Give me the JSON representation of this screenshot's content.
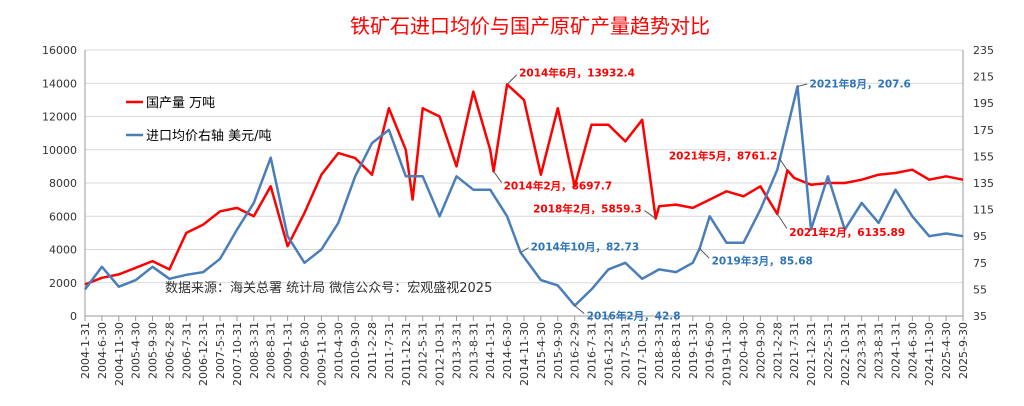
{
  "chart_data": {
    "type": "line",
    "title": "铁矿石进口均价与国产原矿产量趋势对比",
    "source_note": "数据来源：海关总署 统计局  微信公众号：宏观盛视2025",
    "x_tick_labels": [
      "2004-1-31",
      "2004-6-30",
      "2004-11-30",
      "2005-4-30",
      "2005-9-30",
      "2006-2-28",
      "2006-7-31",
      "2006-12-31",
      "2007-5-31",
      "2007-10-31",
      "2008-3-31",
      "2008-8-31",
      "2009-1-31",
      "2009-6-30",
      "2009-11-30",
      "2010-4-30",
      "2010-9-30",
      "2011-2-28",
      "2011-7-31",
      "2011-12-31",
      "2012-5-31",
      "2012-10-31",
      "2013-3-31",
      "2013-8-31",
      "2014-1-31",
      "2014-6-30",
      "2014-11-30",
      "2015-4-30",
      "2015-9-30",
      "2016-2-29",
      "2016-7-31",
      "2016-12-31",
      "2017-5-31",
      "2017-10-31",
      "2018-3-31",
      "2018-8-31",
      "2019-1-31",
      "2019-6-30",
      "2019-11-30",
      "2020-4-30",
      "2020-9-30",
      "2021-2-28",
      "2021-7-31",
      "2021-12-31",
      "2022-5-31",
      "2022-10-31",
      "2023-3-31",
      "2023-8-31",
      "2024-1-31",
      "2024-6-30",
      "2024-11-30",
      "2025-4-30",
      "2025-9-30"
    ],
    "y_left": {
      "min": 0,
      "max": 16000,
      "ticks": [
        0,
        2000,
        4000,
        6000,
        8000,
        10000,
        12000,
        14000,
        16000
      ]
    },
    "y_right": {
      "min": 35,
      "max": 235,
      "ticks": [
        35,
        55,
        75,
        95,
        115,
        135,
        155,
        175,
        195,
        215,
        235
      ]
    },
    "grid": true,
    "legend_position": "top-left",
    "series": [
      {
        "name": "国产量 万吨",
        "axis": "left",
        "color": "#ff0000",
        "points": [
          [
            "2004-01",
            1900
          ],
          [
            "2004-06",
            2300
          ],
          [
            "2004-11",
            2500
          ],
          [
            "2005-04",
            2900
          ],
          [
            "2005-09",
            3300
          ],
          [
            "2006-02",
            2800
          ],
          [
            "2006-07",
            5000
          ],
          [
            "2006-12",
            5500
          ],
          [
            "2007-05",
            6300
          ],
          [
            "2007-10",
            6500
          ],
          [
            "2008-03",
            6000
          ],
          [
            "2008-08",
            7800
          ],
          [
            "2009-01",
            4200
          ],
          [
            "2009-06",
            6200
          ],
          [
            "2009-11",
            8500
          ],
          [
            "2010-04",
            9800
          ],
          [
            "2010-09",
            9500
          ],
          [
            "2011-02",
            8500
          ],
          [
            "2011-07",
            12500
          ],
          [
            "2011-12",
            10000
          ],
          [
            "2012-02",
            7000
          ],
          [
            "2012-05",
            12500
          ],
          [
            "2012-10",
            12000
          ],
          [
            "2013-03",
            9000
          ],
          [
            "2013-08",
            13500
          ],
          [
            "2014-01",
            10000
          ],
          [
            "2014-02",
            8697.7
          ],
          [
            "2014-06",
            13932.4
          ],
          [
            "2014-11",
            13000
          ],
          [
            "2015-04",
            8500
          ],
          [
            "2015-09",
            12500
          ],
          [
            "2016-02",
            7800
          ],
          [
            "2016-07",
            11500
          ],
          [
            "2016-12",
            11500
          ],
          [
            "2017-05",
            10500
          ],
          [
            "2017-10",
            11800
          ],
          [
            "2018-02",
            5859.3
          ],
          [
            "2018-03",
            6600
          ],
          [
            "2018-08",
            6700
          ],
          [
            "2019-01",
            6500
          ],
          [
            "2019-06",
            7000
          ],
          [
            "2019-11",
            7500
          ],
          [
            "2020-04",
            7200
          ],
          [
            "2020-09",
            7800
          ],
          [
            "2021-02",
            6135.89
          ],
          [
            "2021-05",
            8761.2
          ],
          [
            "2021-07",
            8300
          ],
          [
            "2021-12",
            7900
          ],
          [
            "2022-05",
            8000
          ],
          [
            "2022-10",
            8000
          ],
          [
            "2023-03",
            8200
          ],
          [
            "2023-08",
            8500
          ],
          [
            "2024-01",
            8600
          ],
          [
            "2024-06",
            8800
          ],
          [
            "2024-11",
            8200
          ],
          [
            "2025-04",
            8400
          ],
          [
            "2025-09",
            8200
          ]
        ]
      },
      {
        "name": "进口均价右轴 美元/吨",
        "axis": "right",
        "color": "#4a7ebb",
        "points": [
          [
            "2004-01",
            55
          ],
          [
            "2004-06",
            72
          ],
          [
            "2004-11",
            57
          ],
          [
            "2005-04",
            62
          ],
          [
            "2005-09",
            72
          ],
          [
            "2006-02",
            63
          ],
          [
            "2006-07",
            66
          ],
          [
            "2006-12",
            68
          ],
          [
            "2007-05",
            78
          ],
          [
            "2007-10",
            100
          ],
          [
            "2008-03",
            120
          ],
          [
            "2008-08",
            154
          ],
          [
            "2009-01",
            95
          ],
          [
            "2009-06",
            75
          ],
          [
            "2009-11",
            85
          ],
          [
            "2010-04",
            105
          ],
          [
            "2010-09",
            140
          ],
          [
            "2011-02",
            165
          ],
          [
            "2011-07",
            175
          ],
          [
            "2011-12",
            140
          ],
          [
            "2012-05",
            140
          ],
          [
            "2012-10",
            110
          ],
          [
            "2013-03",
            140
          ],
          [
            "2013-08",
            130
          ],
          [
            "2014-01",
            130
          ],
          [
            "2014-06",
            110
          ],
          [
            "2014-10",
            82.73
          ],
          [
            "2015-04",
            62
          ],
          [
            "2015-09",
            58
          ],
          [
            "2016-02",
            42.8
          ],
          [
            "2016-07",
            55
          ],
          [
            "2016-12",
            70
          ],
          [
            "2017-05",
            75
          ],
          [
            "2017-10",
            63
          ],
          [
            "2018-03",
            70
          ],
          [
            "2018-08",
            68
          ],
          [
            "2019-01",
            75
          ],
          [
            "2019-03",
            85.68
          ],
          [
            "2019-06",
            110
          ],
          [
            "2019-11",
            90
          ],
          [
            "2020-04",
            90
          ],
          [
            "2020-09",
            115
          ],
          [
            "2021-02",
            145
          ],
          [
            "2021-08",
            207.6
          ],
          [
            "2021-12",
            100
          ],
          [
            "2022-05",
            140
          ],
          [
            "2022-10",
            100
          ],
          [
            "2023-03",
            120
          ],
          [
            "2023-08",
            105
          ],
          [
            "2024-01",
            130
          ],
          [
            "2024-06",
            110
          ],
          [
            "2024-11",
            95
          ],
          [
            "2025-04",
            97
          ],
          [
            "2025-09",
            95
          ]
        ]
      }
    ],
    "annotations": [
      {
        "text": "2014年6月，13932.4",
        "series": 0,
        "x": "2014-06",
        "color": "#ff0000"
      },
      {
        "text": "2014年2月，8697.7",
        "series": 0,
        "x": "2014-02",
        "color": "#ff0000"
      },
      {
        "text": "2018年2月，5859.3",
        "series": 0,
        "x": "2018-02",
        "color": "#ff0000"
      },
      {
        "text": "2021年5月，8761.2",
        "series": 0,
        "x": "2021-05",
        "color": "#ff0000"
      },
      {
        "text": "2021年2月，6135.89",
        "series": 0,
        "x": "2021-02",
        "color": "#ff0000"
      },
      {
        "text": "2021年8月，207.6",
        "series": 1,
        "x": "2021-08",
        "color": "#2e75b6"
      },
      {
        "text": "2014年10月，82.73",
        "series": 1,
        "x": "2014-10",
        "color": "#2e75b6"
      },
      {
        "text": "2019年3月，85.68",
        "series": 1,
        "x": "2019-03",
        "color": "#2e75b6"
      },
      {
        "text": "2016年2月，42.8",
        "series": 1,
        "x": "2016-02",
        "color": "#2e75b6"
      }
    ]
  }
}
